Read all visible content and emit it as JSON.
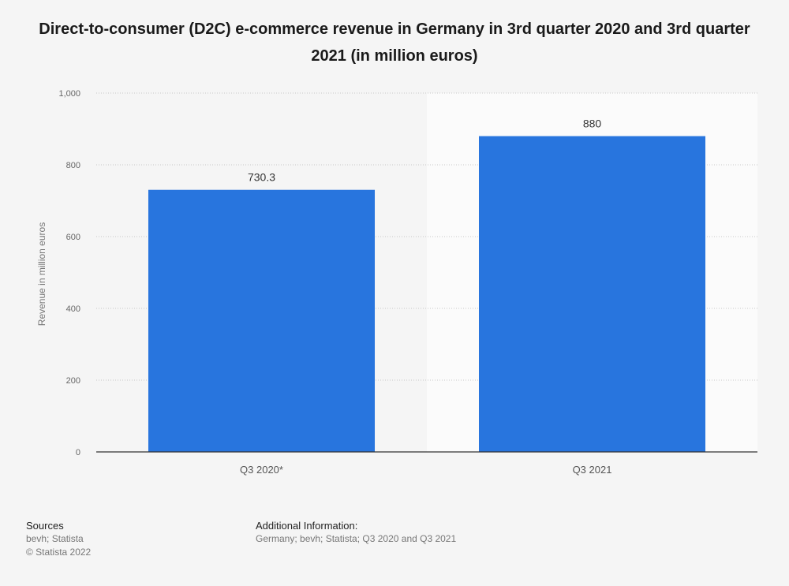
{
  "chart_data": {
    "type": "bar",
    "title": "Direct-to-consumer (D2C) e-commerce revenue in Germany in 3rd quarter 2020 and 3rd quarter 2021 (in million euros)",
    "categories": [
      "Q3 2020*",
      "Q3 2021"
    ],
    "values": [
      730.3,
      880
    ],
    "value_labels": [
      "730.3",
      "880"
    ],
    "xlabel": "",
    "ylabel": "Revenue in million euros",
    "ylim": [
      0,
      1000
    ],
    "yticks": [
      0,
      200,
      400,
      600,
      800,
      1000
    ],
    "ytick_labels": [
      "0",
      "200",
      "400",
      "600",
      "800",
      "1,000"
    ],
    "grid": true,
    "bar_color": "#2875de",
    "highlighted_category_index": 1
  },
  "footer": {
    "sources_heading": "Sources",
    "sources_line1": "bevh; Statista",
    "sources_line2": "© Statista 2022",
    "additional_heading": "Additional Information:",
    "additional_text": "Germany; bevh; Statista; Q3 2020 and Q3 2021"
  }
}
